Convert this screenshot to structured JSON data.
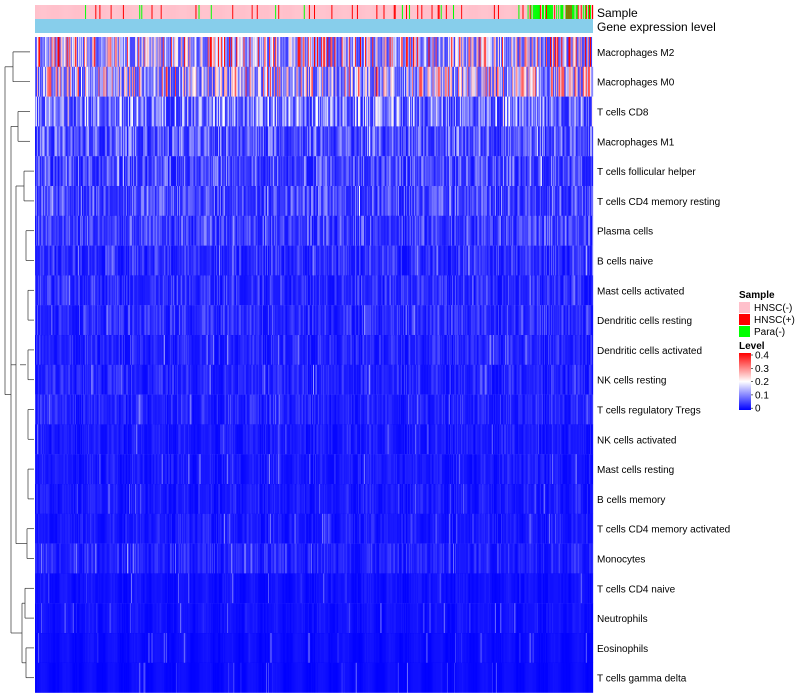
{
  "chart_data": {
    "type": "heatmap",
    "title": "",
    "annotation_rows": {
      "sample_label": "Sample",
      "level_label": "Gene expression level"
    },
    "rows": [
      "Macrophages M2",
      "Macrophages M0",
      "T cells CD8",
      "Macrophages M1",
      "T cells follicular helper",
      "T cells CD4 memory resting",
      "Plasma cells",
      "B cells naive",
      "Mast cells activated",
      "Dendritic cells resting",
      "Dendritic cells activated",
      "NK cells resting",
      "T cells regulatory  Tregs",
      "NK cells activated",
      "Mast cells resting",
      "B cells memory",
      "T cells CD4 memory activated",
      "Monocytes",
      "T cells CD4 naive",
      "Neutrophils",
      "Eosinophils",
      "T cells gamma delta"
    ],
    "row_mean_levels": [
      0.24,
      0.2,
      0.12,
      0.08,
      0.07,
      0.07,
      0.06,
      0.04,
      0.04,
      0.04,
      0.03,
      0.03,
      0.03,
      0.02,
      0.02,
      0.02,
      0.02,
      0.03,
      0.01,
      0.01,
      0.005,
      0.003
    ],
    "num_samples": 546,
    "sample_groups": [
      {
        "name": "HNSC(-)",
        "color": "#FFC0CB",
        "count": 450
      },
      {
        "name": "HNSC(+)",
        "color": "#FF0000",
        "count": 52
      },
      {
        "name": "Para(-)",
        "color": "#00FF00",
        "count": 44
      }
    ],
    "level_scale": {
      "min": 0,
      "max": 0.4,
      "ticks": [
        "0.4",
        "0.3",
        "0.2",
        "0.1",
        "0"
      ],
      "colors": [
        "#0000FF",
        "#FFFFFF",
        "#FF0000"
      ]
    },
    "level_bar_color": "#87CEEB",
    "legend": {
      "sample_title": "Sample",
      "level_title": "Level",
      "position": "right"
    }
  }
}
